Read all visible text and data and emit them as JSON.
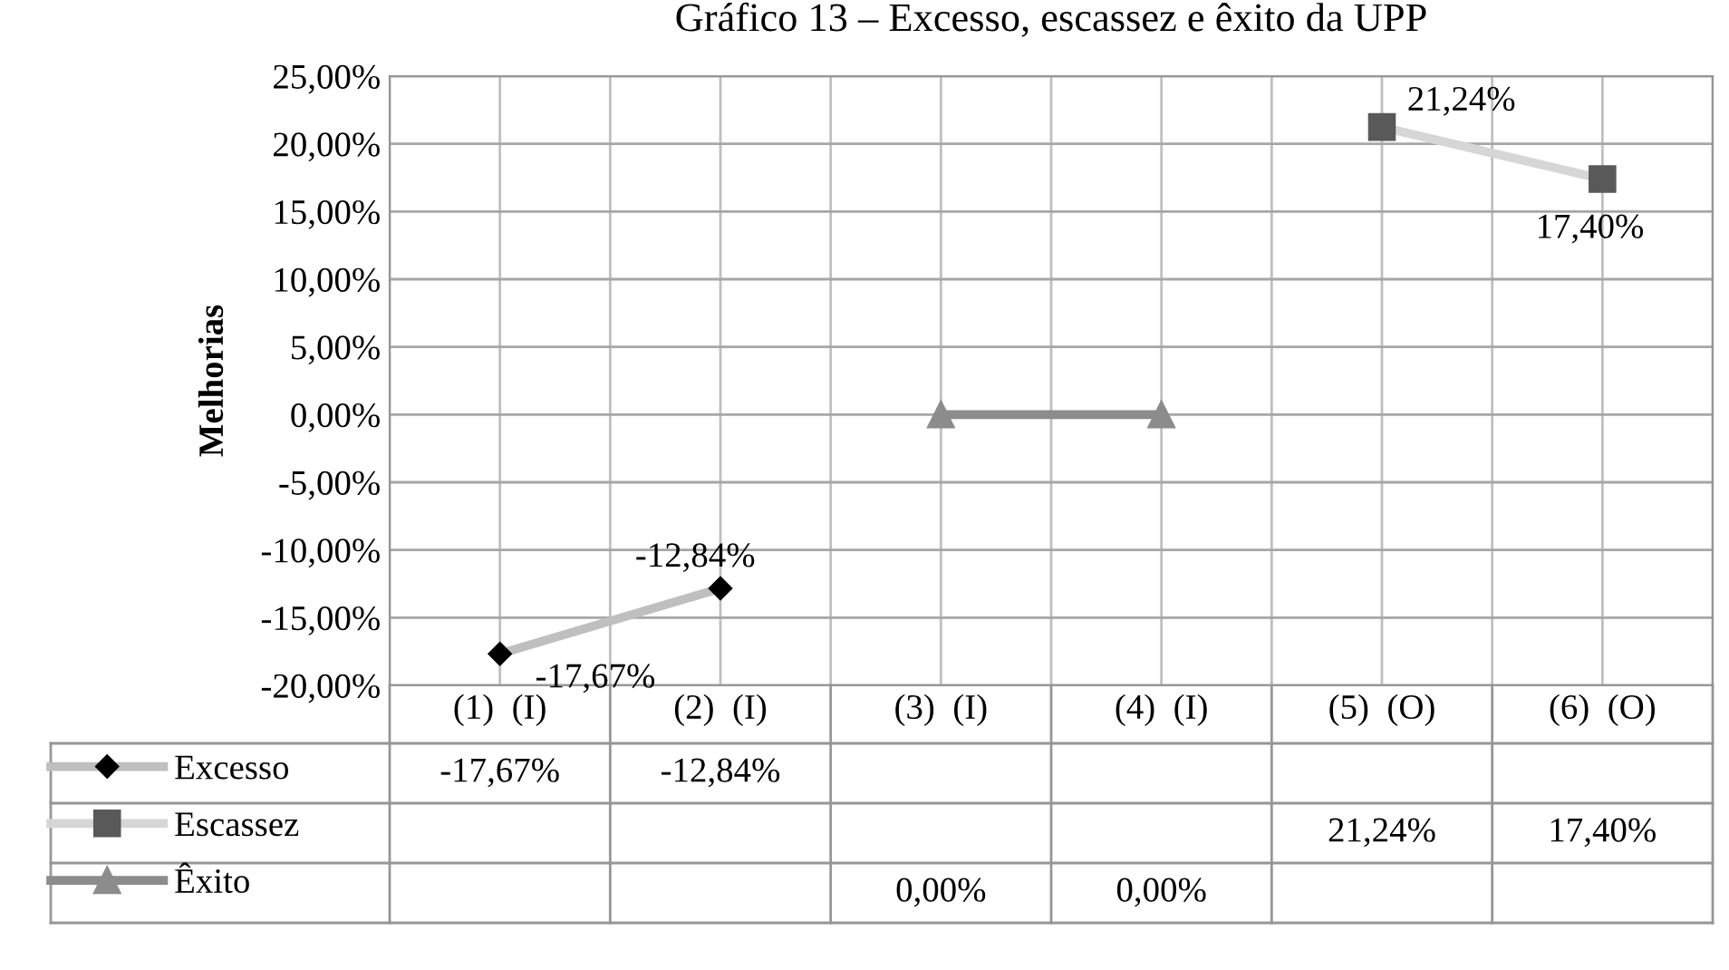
{
  "chart_data": {
    "type": "line",
    "title": "Gráfico 13 – Excesso, escassez e êxito da UPP",
    "ylabel": "Melhorias",
    "categories": [
      "(1)  (I)",
      "(2)  (I)",
      "(3)  (I)",
      "(4)  (I)",
      "(5)  (O)",
      "(6)  (O)"
    ],
    "series": [
      {
        "name": "Excesso",
        "color": "#000000",
        "marker": "diamond",
        "values": [
          -17.67,
          -12.84,
          null,
          null,
          null,
          null
        ],
        "value_labels": [
          "-17,67%",
          "-12,84%",
          null,
          null,
          null,
          null
        ]
      },
      {
        "name": "Escassez",
        "color": "#595959",
        "marker": "square",
        "values": [
          null,
          null,
          null,
          null,
          21.24,
          17.4
        ],
        "value_labels": [
          null,
          null,
          null,
          null,
          "21,24%",
          "17,40%"
        ]
      },
      {
        "name": "Êxito",
        "color": "#8c8c8c",
        "marker": "triangle",
        "values": [
          null,
          null,
          0.0,
          0.0,
          null,
          null
        ],
        "value_labels": [
          null,
          null,
          "0,00%",
          "0,00%",
          null,
          null
        ]
      }
    ],
    "ylim": [
      -20,
      25
    ],
    "yticks": [
      {
        "value": -20,
        "label": "-20,00%"
      },
      {
        "value": -15,
        "label": "-15,00%"
      },
      {
        "value": -10,
        "label": "-10,00%"
      },
      {
        "value": -5,
        "label": "-5,00%"
      },
      {
        "value": 0,
        "label": "0,00%"
      },
      {
        "value": 5,
        "label": "5,00%"
      },
      {
        "value": 10,
        "label": "10,00%"
      },
      {
        "value": 15,
        "label": "15,00%"
      },
      {
        "value": 20,
        "label": "20,00%"
      },
      {
        "value": 25,
        "label": "25,00%"
      }
    ],
    "grid": true,
    "legend": "bottom"
  }
}
